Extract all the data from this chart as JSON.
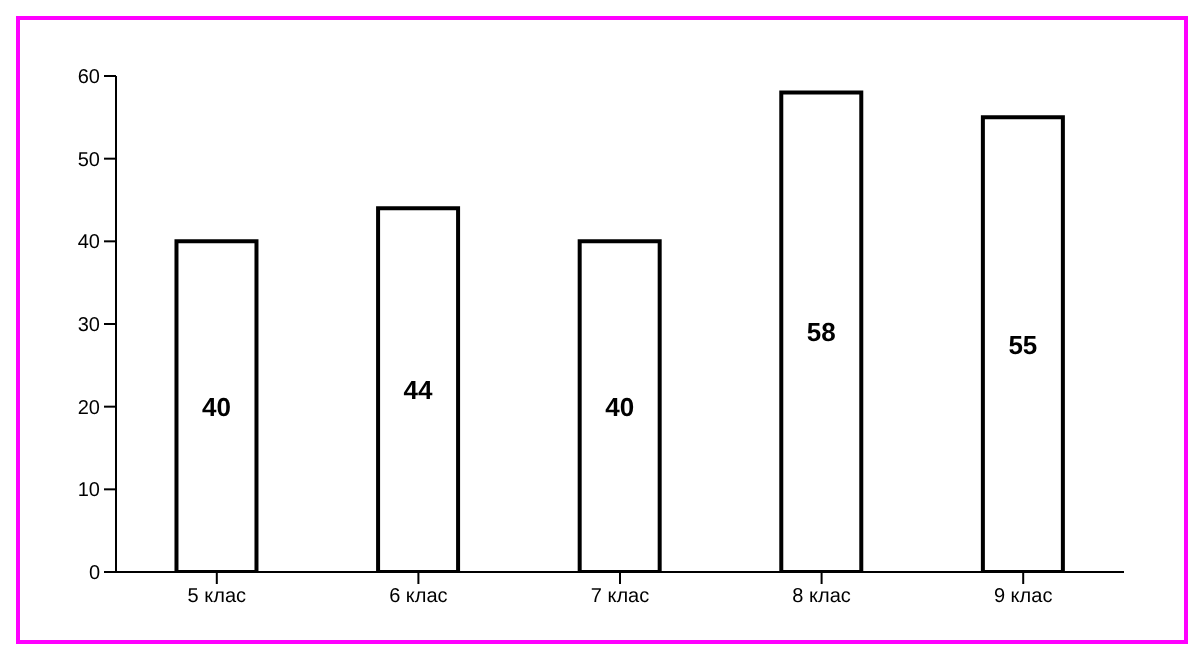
{
  "chart_data": {
    "type": "bar",
    "categories": [
      "5 клас",
      "6 клас",
      "7 клас",
      "8 клас",
      "9 клас"
    ],
    "values": [
      40,
      44,
      40,
      58,
      55
    ],
    "color": "#ffffff",
    "ylim": [
      0,
      60
    ],
    "yticks": [
      0,
      10,
      20,
      30,
      40,
      50,
      60
    ],
    "data_labels": true,
    "grid": false,
    "legend": false
  }
}
